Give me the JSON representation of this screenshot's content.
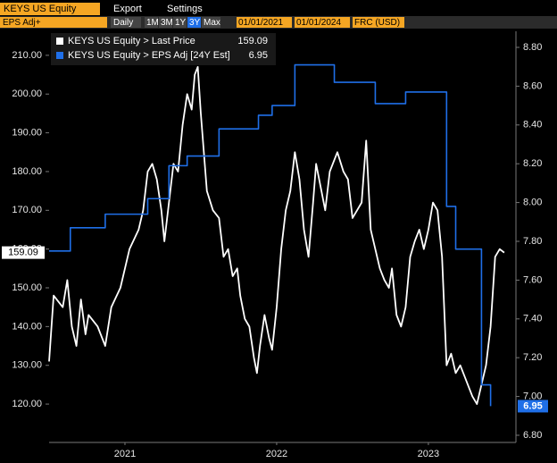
{
  "header": {
    "security": "KEYS US Equity",
    "menu": [
      "Export",
      "Settings"
    ],
    "field": "EPS Adj+",
    "period": "Daily",
    "ranges": [
      "1M",
      "3M",
      "1Y",
      "3Y",
      "Max"
    ],
    "start": "01/01/2021",
    "end": "01/01/2024",
    "currency": "FRC (USD)"
  },
  "chart_data": {
    "type": "line",
    "xlim": [
      2021,
      2024.03
    ],
    "xticks": [
      {
        "value": 2021.5,
        "label": "2021"
      },
      {
        "value": 2022.5,
        "label": "2022"
      },
      {
        "value": 2023.5,
        "label": "2023"
      }
    ],
    "ylim": [
      110.1,
      216.2
    ],
    "yticks": [
      {
        "value": 120,
        "label": "120.00"
      },
      {
        "value": 130,
        "label": "130.00"
      },
      {
        "value": 140,
        "label": "140.00"
      },
      {
        "value": 150,
        "label": "150.00"
      },
      {
        "value": 160,
        "label": "160.00"
      },
      {
        "value": 170,
        "label": "170.00"
      },
      {
        "value": 180,
        "label": "180.00"
      },
      {
        "value": 190,
        "label": "190.00"
      },
      {
        "value": 200,
        "label": "200.00"
      },
      {
        "value": 210,
        "label": "210.00"
      }
    ],
    "y2lim": [
      6.763,
      8.883
    ],
    "y2ticks": [
      {
        "value": 6.8,
        "label": "6.80"
      },
      {
        "value": 7.0,
        "label": "7.00"
      },
      {
        "value": 7.2,
        "label": "7.20"
      },
      {
        "value": 7.4,
        "label": "7.40"
      },
      {
        "value": 7.6,
        "label": "7.60"
      },
      {
        "value": 7.8,
        "label": "7.80"
      },
      {
        "value": 8.0,
        "label": "8.00"
      },
      {
        "value": 8.2,
        "label": "8.20"
      },
      {
        "value": 8.4,
        "label": "8.40"
      },
      {
        "value": 8.6,
        "label": "8.60"
      },
      {
        "value": 8.8,
        "label": "8.80"
      }
    ],
    "series": [
      {
        "name": "KEYS US Equity > Last Price",
        "color": "#ffffff",
        "axis": "y",
        "last_label": "159.09",
        "x": [
          2021,
          2021.03,
          2021.09,
          2021.12,
          2021.15,
          2021.18,
          2021.21,
          2021.24,
          2021.26,
          2021.32,
          2021.37,
          2021.41,
          2021.47,
          2021.53,
          2021.59,
          2021.62,
          2021.65,
          2021.68,
          2021.71,
          2021.74,
          2021.76,
          2021.79,
          2021.82,
          2021.85,
          2021.88,
          2021.91,
          2021.94,
          2021.96,
          2021.98,
          2022.0,
          2022.02,
          2022.04,
          2022.08,
          2022.12,
          2022.15,
          2022.18,
          2022.21,
          2022.24,
          2022.26,
          2022.29,
          2022.32,
          2022.35,
          2022.37,
          2022.39,
          2022.42,
          2022.45,
          2022.47,
          2022.5,
          2022.53,
          2022.56,
          2022.59,
          2022.62,
          2022.65,
          2022.68,
          2022.71,
          2022.74,
          2022.76,
          2022.79,
          2022.82,
          2022.85,
          2022.9,
          2022.94,
          2022.97,
          2023.0,
          2023.03,
          2023.06,
          2023.09,
          2023.12,
          2023.15,
          2023.18,
          2023.21,
          2023.24,
          2023.26,
          2023.29,
          2023.32,
          2023.35,
          2023.38,
          2023.41,
          2023.44,
          2023.47,
          2023.5,
          2023.53,
          2023.56,
          2023.59,
          2023.62,
          2023.65,
          2023.68,
          2023.71,
          2023.74,
          2023.76,
          2023.79,
          2023.82,
          2023.85,
          2023.88,
          2023.91,
          2023.94,
          2023.97,
          2024.0
        ],
        "values": [
          131,
          148,
          145,
          152,
          140,
          135,
          147,
          138,
          143,
          140,
          135,
          145,
          150,
          160,
          165,
          170,
          180,
          182,
          178,
          170,
          162,
          172,
          182,
          180,
          192,
          200,
          196,
          205,
          207,
          195,
          185,
          175,
          170,
          168,
          158,
          160,
          153,
          155,
          148,
          142,
          140,
          132,
          128,
          135,
          143,
          137,
          134,
          145,
          160,
          170,
          175,
          185,
          178,
          165,
          158,
          172,
          182,
          176,
          170,
          180,
          185,
          180,
          178,
          168,
          170,
          172,
          188,
          165,
          160,
          155,
          152,
          150,
          155,
          143,
          140,
          145,
          158,
          162,
          165,
          160,
          165,
          172,
          170,
          158,
          130,
          133,
          128,
          130,
          127,
          125,
          122,
          120,
          125,
          130,
          140,
          158,
          160,
          159.09
        ]
      },
      {
        "name": "KEYS US Equity > EPS Adj [24Y Est]",
        "color": "#1f6fe8",
        "axis": "y2",
        "step": true,
        "last_label": "6.95",
        "x": [
          2021,
          2021.14,
          2021.37,
          2021.65,
          2021.79,
          2021.91,
          2022.12,
          2022.38,
          2022.47,
          2022.62,
          2022.88,
          2023.15,
          2023.35,
          2023.62,
          2023.68,
          2023.85,
          2023.91
        ],
        "values": [
          7.75,
          7.87,
          7.94,
          8.02,
          8.19,
          8.24,
          8.38,
          8.45,
          8.5,
          8.71,
          8.62,
          8.51,
          8.57,
          7.98,
          7.76,
          7.06,
          6.95
        ]
      }
    ]
  }
}
